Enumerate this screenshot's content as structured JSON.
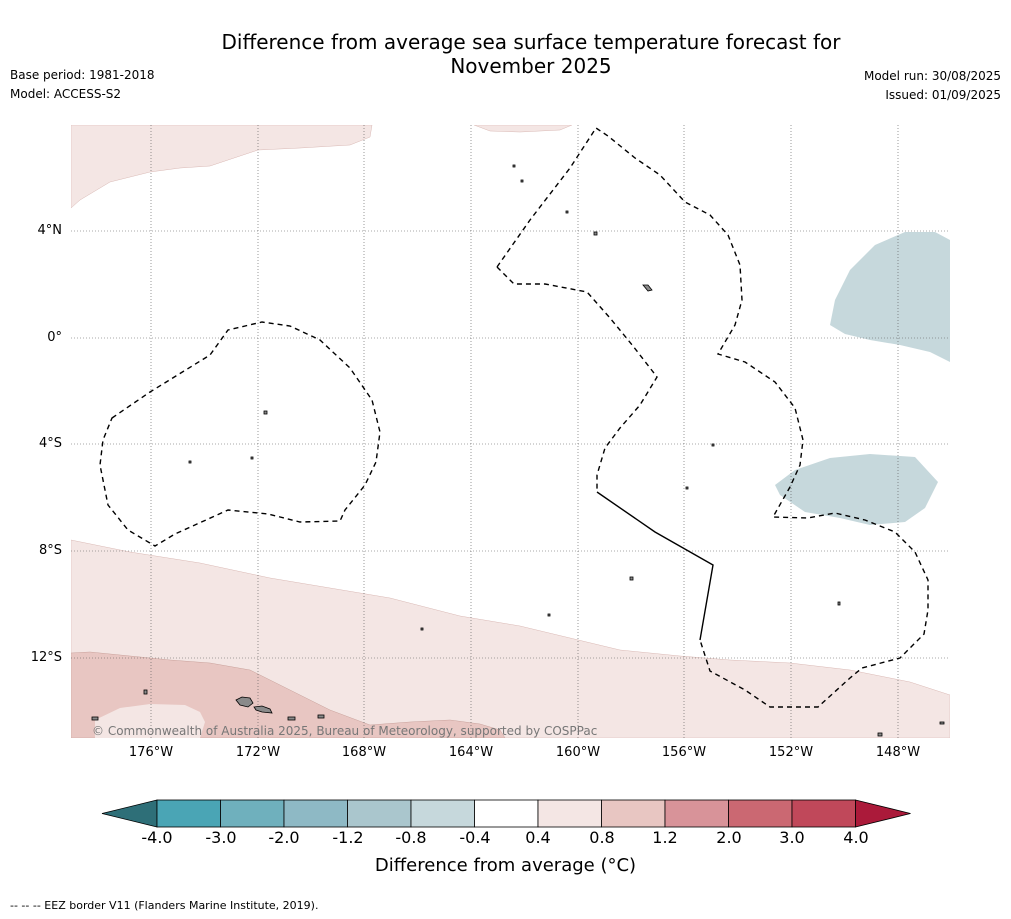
{
  "header": {
    "title_line1": "Difference from average sea surface temperature forecast for",
    "title_line2": "November 2025",
    "base_period": "Base period: 1981-2018",
    "model": "Model: ACCESS-S2",
    "model_run": "Model run: 30/08/2025",
    "issued": "Issued: 01/09/2025"
  },
  "map": {
    "lat_labels": [
      "4°N",
      "0°",
      "4°S",
      "8°S",
      "12°S"
    ],
    "lon_labels": [
      "176°W",
      "172°W",
      "168°W",
      "164°W",
      "160°W",
      "156°W",
      "152°W",
      "148°W"
    ],
    "copyright": "© Commonwealth of Australia 2025, Bureau of Meteorology, supported by COSPPac",
    "colors": {
      "warm_light": "#f4e6e4",
      "warm_medium": "#e8c6c2",
      "cool_light": "#c6d8dc",
      "land": "#8a8a8a"
    }
  },
  "colorbar": {
    "label": "Difference from average (°C)",
    "ticks": [
      "-4.0",
      "-3.0",
      "-2.0",
      "-1.2",
      "-0.8",
      "-0.4",
      "0.4",
      "0.8",
      "1.2",
      "2.0",
      "3.0",
      "4.0"
    ],
    "colors": [
      "#2e6f78",
      "#4aa5b5",
      "#6fb0bd",
      "#8eb9c5",
      "#aac6cd",
      "#c6d8dc",
      "#ffffff",
      "#f4e6e4",
      "#e8c6c2",
      "#d89399",
      "#cb6872",
      "#c0485a",
      "#ab1a3a"
    ]
  },
  "footer": {
    "eez_note": "--  --  -- EEZ border V11 (Flanders Marine Institute, 2019)."
  }
}
